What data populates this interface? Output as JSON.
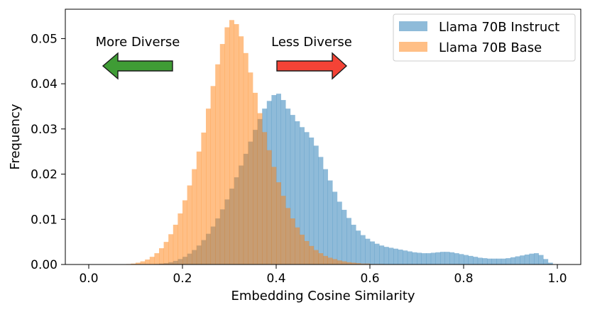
{
  "chart_data": {
    "type": "histogram",
    "title": "",
    "xlabel": "Embedding Cosine Similarity",
    "ylabel": "Frequency",
    "xlim": [
      -0.05,
      1.05
    ],
    "ylim": [
      0,
      0.0565
    ],
    "xticks": [
      0.0,
      0.2,
      0.4,
      0.6,
      0.8,
      1.0
    ],
    "xtick_labels": [
      "0.0",
      "0.2",
      "0.4",
      "0.6",
      "0.8",
      "1.0"
    ],
    "yticks": [
      0.0,
      0.01,
      0.02,
      0.03,
      0.04,
      0.05
    ],
    "ytick_labels": [
      "0.00",
      "0.01",
      "0.02",
      "0.03",
      "0.04",
      "0.05"
    ],
    "bin_width": 0.01,
    "grid": false,
    "legend_position": "upper-right",
    "series": [
      {
        "name": "Llama 70B Instruct",
        "color": "#1f77b4",
        "alpha": 0.5,
        "bin_starts": [
          0.14,
          0.15,
          0.16,
          0.17,
          0.18,
          0.19,
          0.2,
          0.21,
          0.22,
          0.23,
          0.24,
          0.25,
          0.26,
          0.27,
          0.28,
          0.29,
          0.3,
          0.31,
          0.32,
          0.33,
          0.34,
          0.35,
          0.36,
          0.37,
          0.38,
          0.39,
          0.4,
          0.41,
          0.42,
          0.43,
          0.44,
          0.45,
          0.46,
          0.47,
          0.48,
          0.49,
          0.5,
          0.51,
          0.52,
          0.53,
          0.54,
          0.55,
          0.56,
          0.57,
          0.58,
          0.59,
          0.6,
          0.61,
          0.62,
          0.63,
          0.64,
          0.65,
          0.66,
          0.67,
          0.68,
          0.69,
          0.7,
          0.71,
          0.72,
          0.73,
          0.74,
          0.75,
          0.76,
          0.77,
          0.78,
          0.79,
          0.8,
          0.81,
          0.82,
          0.83,
          0.84,
          0.85,
          0.86,
          0.87,
          0.88,
          0.89,
          0.9,
          0.91,
          0.92,
          0.93,
          0.94,
          0.95,
          0.96,
          0.97,
          0.98
        ],
        "values": [
          0.0001,
          0.0002,
          0.0003,
          0.0005,
          0.0008,
          0.0012,
          0.0017,
          0.0024,
          0.0032,
          0.0042,
          0.0054,
          0.0068,
          0.0084,
          0.0102,
          0.0122,
          0.0144,
          0.0168,
          0.0193,
          0.0219,
          0.0245,
          0.0272,
          0.0298,
          0.0322,
          0.0345,
          0.0362,
          0.0375,
          0.0378,
          0.0364,
          0.0345,
          0.0331,
          0.0317,
          0.0304,
          0.0293,
          0.0281,
          0.0263,
          0.0238,
          0.0211,
          0.0186,
          0.0161,
          0.0139,
          0.0121,
          0.0103,
          0.0088,
          0.0075,
          0.0065,
          0.0057,
          0.0051,
          0.0046,
          0.0042,
          0.0039,
          0.0037,
          0.0035,
          0.0033,
          0.0031,
          0.0029,
          0.0027,
          0.0026,
          0.0025,
          0.0025,
          0.0026,
          0.0027,
          0.0028,
          0.0028,
          0.0027,
          0.0025,
          0.0023,
          0.0021,
          0.0019,
          0.0017,
          0.0015,
          0.0014,
          0.0013,
          0.0013,
          0.0013,
          0.0013,
          0.0014,
          0.0016,
          0.0018,
          0.002,
          0.0022,
          0.0024,
          0.0025,
          0.0021,
          0.0012,
          0.0004
        ]
      },
      {
        "name": "Llama 70B Base",
        "color": "#ff7f0e",
        "alpha": 0.5,
        "bin_starts": [
          0.08,
          0.09,
          0.1,
          0.11,
          0.12,
          0.13,
          0.14,
          0.15,
          0.16,
          0.17,
          0.18,
          0.19,
          0.2,
          0.21,
          0.22,
          0.23,
          0.24,
          0.25,
          0.26,
          0.27,
          0.28,
          0.29,
          0.3,
          0.31,
          0.32,
          0.33,
          0.34,
          0.35,
          0.36,
          0.37,
          0.38,
          0.39,
          0.4,
          0.41,
          0.42,
          0.43,
          0.44,
          0.45,
          0.46,
          0.47,
          0.48,
          0.49,
          0.5,
          0.51,
          0.52,
          0.53,
          0.54,
          0.55,
          0.56,
          0.57,
          0.58,
          0.59,
          0.6,
          0.61,
          0.62
        ],
        "values": [
          0.0001,
          0.0002,
          0.0004,
          0.0007,
          0.0011,
          0.0017,
          0.0025,
          0.0036,
          0.005,
          0.0067,
          0.0088,
          0.0113,
          0.0142,
          0.0175,
          0.0211,
          0.025,
          0.0292,
          0.0345,
          0.0395,
          0.0443,
          0.0488,
          0.0525,
          0.0541,
          0.0532,
          0.0505,
          0.0468,
          0.0425,
          0.038,
          0.0335,
          0.0293,
          0.0253,
          0.0216,
          0.0182,
          0.0152,
          0.0125,
          0.0102,
          0.0082,
          0.0066,
          0.0052,
          0.0041,
          0.0032,
          0.0025,
          0.0019,
          0.0015,
          0.0012,
          0.0009,
          0.0007,
          0.0005,
          0.0004,
          0.0003,
          0.0002,
          0.0002,
          0.0001,
          0.0001,
          0.0001
        ]
      }
    ],
    "annotations": [
      {
        "text": "More Diverse",
        "arrow": "left",
        "arrow_color": "#2ca02c"
      },
      {
        "text": "Less Diverse",
        "arrow": "right",
        "arrow_color": "#d62728"
      }
    ]
  }
}
